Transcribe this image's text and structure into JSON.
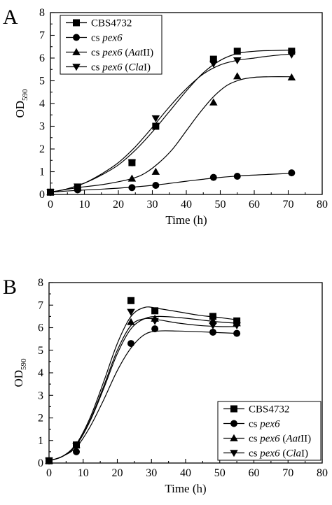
{
  "chart_data": [
    {
      "panel_label": "A",
      "type": "line",
      "xlabel": "Time (h)",
      "ylabel": {
        "main": "OD",
        "sub": "590"
      },
      "xlim": [
        0,
        80
      ],
      "ylim": [
        0,
        8
      ],
      "x_ticks": [
        0,
        10,
        20,
        30,
        40,
        50,
        60,
        70,
        80
      ],
      "y_ticks": [
        0,
        1,
        2,
        3,
        4,
        5,
        6,
        7,
        8
      ],
      "legend_position": "top-left",
      "series": [
        {
          "name_parts": [
            {
              "t": "CBS4732"
            }
          ],
          "marker": "square",
          "x": [
            0,
            8,
            24,
            31,
            48,
            55,
            71
          ],
          "y": [
            0.1,
            0.3,
            1.4,
            3.0,
            5.95,
            6.3,
            6.3
          ],
          "curve": [
            [
              0,
              0.1
            ],
            [
              5,
              0.25
            ],
            [
              10,
              0.5
            ],
            [
              15,
              0.85
            ],
            [
              20,
              1.3
            ],
            [
              25,
              1.95
            ],
            [
              30,
              2.75
            ],
            [
              35,
              3.65
            ],
            [
              40,
              4.55
            ],
            [
              45,
              5.35
            ],
            [
              50,
              5.9
            ],
            [
              55,
              6.2
            ],
            [
              60,
              6.3
            ],
            [
              65,
              6.33
            ],
            [
              71,
              6.35
            ]
          ]
        },
        {
          "name_parts": [
            {
              "t": "cs "
            },
            {
              "t": "pex6",
              "i": true
            }
          ],
          "marker": "circle",
          "x": [
            0,
            8,
            24,
            31,
            48,
            55,
            71
          ],
          "y": [
            0.1,
            0.2,
            0.3,
            0.4,
            0.75,
            0.8,
            0.95
          ],
          "curve": [
            [
              0,
              0.1
            ],
            [
              8,
              0.18
            ],
            [
              16,
              0.24
            ],
            [
              24,
              0.32
            ],
            [
              32,
              0.43
            ],
            [
              40,
              0.58
            ],
            [
              48,
              0.72
            ],
            [
              56,
              0.82
            ],
            [
              64,
              0.88
            ],
            [
              71,
              0.93
            ]
          ]
        },
        {
          "name_parts": [
            {
              "t": "cs "
            },
            {
              "t": "pex6",
              "i": true
            },
            {
              "t": " ("
            },
            {
              "t": "Aat",
              "i": true
            },
            {
              "t": "II)"
            }
          ],
          "marker": "triangle-up",
          "x": [
            0,
            8,
            24,
            31,
            48,
            55,
            71
          ],
          "y": [
            0.1,
            0.3,
            0.7,
            1.0,
            4.05,
            5.2,
            5.15
          ],
          "curve": [
            [
              0,
              0.1
            ],
            [
              8,
              0.3
            ],
            [
              16,
              0.45
            ],
            [
              24,
              0.7
            ],
            [
              28,
              0.95
            ],
            [
              32,
              1.4
            ],
            [
              36,
              2.0
            ],
            [
              40,
              2.8
            ],
            [
              44,
              3.6
            ],
            [
              48,
              4.3
            ],
            [
              52,
              4.8
            ],
            [
              56,
              5.05
            ],
            [
              60,
              5.15
            ],
            [
              65,
              5.18
            ],
            [
              71,
              5.18
            ]
          ]
        },
        {
          "name_parts": [
            {
              "t": "cs "
            },
            {
              "t": "pex6",
              "i": true
            },
            {
              "t": " ("
            },
            {
              "t": "Cla",
              "i": true
            },
            {
              "t": "I)"
            }
          ],
          "marker": "triangle-down",
          "x": [
            0,
            8,
            24,
            31,
            48,
            55,
            71
          ],
          "y": [
            0.1,
            0.35,
            1.4,
            3.35,
            5.75,
            5.9,
            6.15
          ],
          "curve": [
            [
              0,
              0.1
            ],
            [
              5,
              0.25
            ],
            [
              10,
              0.5
            ],
            [
              15,
              0.9
            ],
            [
              20,
              1.4
            ],
            [
              25,
              2.1
            ],
            [
              30,
              2.95
            ],
            [
              35,
              3.85
            ],
            [
              40,
              4.65
            ],
            [
              45,
              5.3
            ],
            [
              50,
              5.7
            ],
            [
              55,
              5.9
            ],
            [
              60,
              6.0
            ],
            [
              65,
              6.1
            ],
            [
              71,
              6.18
            ]
          ]
        }
      ]
    },
    {
      "panel_label": "B",
      "type": "line",
      "xlabel": "Time (h)",
      "ylabel": {
        "main": "OD",
        "sub": "590"
      },
      "xlim": [
        0,
        80
      ],
      "ylim": [
        0,
        8
      ],
      "x_ticks": [
        0,
        10,
        20,
        30,
        40,
        50,
        60,
        70,
        80
      ],
      "y_ticks": [
        0,
        1,
        2,
        3,
        4,
        5,
        6,
        7,
        8
      ],
      "legend_position": "bottom-right",
      "series": [
        {
          "name_parts": [
            {
              "t": "CBS4732"
            }
          ],
          "marker": "square",
          "x": [
            0,
            8,
            24,
            31,
            48,
            55
          ],
          "y": [
            0.1,
            0.8,
            7.2,
            6.75,
            6.5,
            6.3
          ],
          "curve": [
            [
              0,
              0.1
            ],
            [
              4,
              0.3
            ],
            [
              8,
              0.85
            ],
            [
              12,
              2.0
            ],
            [
              16,
              3.6
            ],
            [
              20,
              5.3
            ],
            [
              24,
              6.5
            ],
            [
              28,
              6.9
            ],
            [
              32,
              6.85
            ],
            [
              38,
              6.7
            ],
            [
              44,
              6.55
            ],
            [
              50,
              6.45
            ],
            [
              55,
              6.35
            ]
          ]
        },
        {
          "name_parts": [
            {
              "t": "cs "
            },
            {
              "t": "pex6",
              "i": true
            }
          ],
          "marker": "circle",
          "x": [
            0,
            8,
            24,
            31,
            48,
            55
          ],
          "y": [
            0.1,
            0.5,
            5.3,
            5.95,
            5.8,
            5.75
          ],
          "curve": [
            [
              0,
              0.1
            ],
            [
              4,
              0.3
            ],
            [
              8,
              0.7
            ],
            [
              12,
              1.6
            ],
            [
              16,
              2.8
            ],
            [
              20,
              4.1
            ],
            [
              24,
              5.1
            ],
            [
              28,
              5.7
            ],
            [
              32,
              5.85
            ],
            [
              38,
              5.85
            ],
            [
              44,
              5.82
            ],
            [
              50,
              5.78
            ],
            [
              55,
              5.75
            ]
          ]
        },
        {
          "name_parts": [
            {
              "t": "cs "
            },
            {
              "t": "pex6",
              "i": true
            },
            {
              "t": " ("
            },
            {
              "t": "Aat",
              "i": true
            },
            {
              "t": "II)"
            }
          ],
          "marker": "triangle-up",
          "x": [
            0,
            8,
            24,
            31,
            48,
            55
          ],
          "y": [
            0.1,
            0.8,
            6.25,
            6.4,
            6.3,
            6.2
          ],
          "curve": [
            [
              0,
              0.1
            ],
            [
              4,
              0.3
            ],
            [
              8,
              0.8
            ],
            [
              12,
              1.85
            ],
            [
              16,
              3.3
            ],
            [
              20,
              4.85
            ],
            [
              24,
              5.95
            ],
            [
              28,
              6.4
            ],
            [
              32,
              6.5
            ],
            [
              38,
              6.45
            ],
            [
              44,
              6.35
            ],
            [
              50,
              6.25
            ],
            [
              55,
              6.2
            ]
          ]
        },
        {
          "name_parts": [
            {
              "t": "cs "
            },
            {
              "t": "pex6",
              "i": true
            },
            {
              "t": " ("
            },
            {
              "t": "Cla",
              "i": true
            },
            {
              "t": "I)"
            }
          ],
          "marker": "triangle-down",
          "x": [
            0,
            8,
            24,
            31,
            48,
            55
          ],
          "y": [
            0.1,
            0.75,
            6.7,
            6.3,
            6.1,
            6.1
          ],
          "curve": [
            [
              0,
              0.1
            ],
            [
              4,
              0.3
            ],
            [
              8,
              0.8
            ],
            [
              12,
              1.9
            ],
            [
              16,
              3.4
            ],
            [
              20,
              5.0
            ],
            [
              24,
              6.1
            ],
            [
              28,
              6.4
            ],
            [
              32,
              6.35
            ],
            [
              38,
              6.2
            ],
            [
              44,
              6.1
            ],
            [
              50,
              6.05
            ],
            [
              55,
              6.05
            ]
          ]
        }
      ]
    }
  ]
}
